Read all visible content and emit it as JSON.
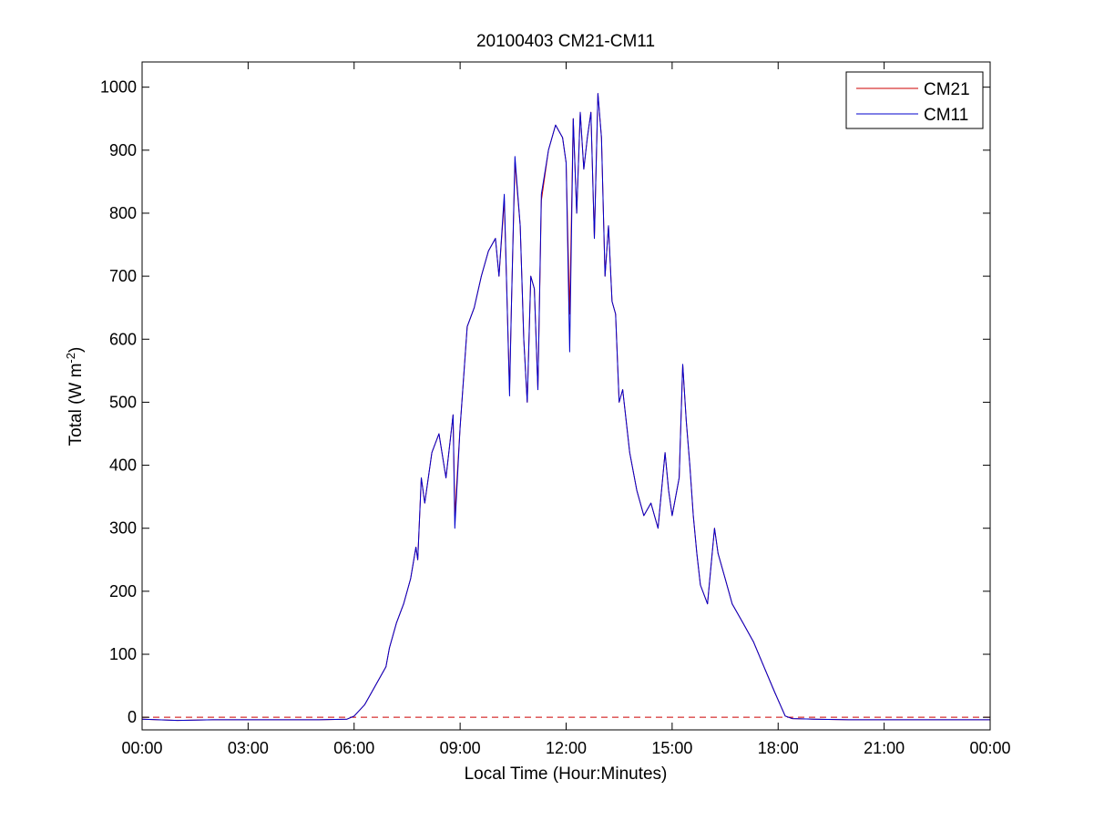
{
  "chart_data": {
    "type": "line",
    "title": "20100403 CM21-CM11",
    "xlabel": "Local Time (Hour:Minutes)",
    "ylabel": "Total (W m",
    "ylabel_superscript": "-2",
    "ylabel_suffix": ")",
    "xlim": [
      0,
      24
    ],
    "ylim": [
      -20,
      1040
    ],
    "x_ticks": [
      0,
      3,
      6,
      9,
      12,
      15,
      18,
      21,
      24
    ],
    "x_tick_labels": [
      "00:00",
      "03:00",
      "06:00",
      "09:00",
      "12:00",
      "15:00",
      "18:00",
      "21:00",
      "00:00"
    ],
    "y_ticks": [
      0,
      100,
      200,
      300,
      400,
      500,
      600,
      700,
      800,
      900,
      1000
    ],
    "y_tick_labels": [
      "0",
      "100",
      "200",
      "300",
      "400",
      "500",
      "600",
      "700",
      "800",
      "900",
      "1000"
    ],
    "grid": false,
    "legend_position": "top-right",
    "zero_line": {
      "y": 0,
      "style": "dashed",
      "color": "#cc0000"
    },
    "x": [
      0,
      1,
      2,
      3,
      4,
      5,
      5.8,
      6.0,
      6.3,
      6.6,
      6.9,
      7.0,
      7.2,
      7.4,
      7.6,
      7.75,
      7.8,
      7.9,
      8.0,
      8.2,
      8.4,
      8.6,
      8.8,
      8.85,
      9.0,
      9.2,
      9.4,
      9.6,
      9.8,
      10.0,
      10.1,
      10.25,
      10.4,
      10.45,
      10.55,
      10.7,
      10.8,
      10.9,
      11.0,
      11.1,
      11.2,
      11.3,
      11.5,
      11.7,
      11.9,
      12.0,
      12.1,
      12.2,
      12.3,
      12.4,
      12.5,
      12.6,
      12.7,
      12.8,
      12.9,
      13.0,
      13.1,
      13.2,
      13.3,
      13.4,
      13.5,
      13.6,
      13.8,
      14.0,
      14.2,
      14.4,
      14.6,
      14.8,
      14.9,
      15.0,
      15.2,
      15.3,
      15.4,
      15.5,
      15.6,
      15.7,
      15.8,
      16.0,
      16.2,
      16.3,
      16.5,
      16.7,
      17.0,
      17.3,
      17.6,
      17.9,
      18.2,
      18.4,
      19,
      20,
      21,
      22,
      23,
      24
    ],
    "series": [
      {
        "name": "CM21",
        "color": "#cc0000",
        "values": [
          -3,
          -5,
          -4,
          -4,
          -4,
          -4,
          -3,
          2,
          20,
          50,
          80,
          110,
          150,
          180,
          220,
          270,
          250,
          380,
          340,
          420,
          450,
          380,
          480,
          320,
          460,
          620,
          650,
          700,
          740,
          760,
          700,
          820,
          520,
          650,
          880,
          780,
          600,
          500,
          700,
          680,
          520,
          820,
          900,
          940,
          920,
          880,
          640,
          950,
          800,
          960,
          870,
          920,
          960,
          760,
          990,
          920,
          700,
          780,
          660,
          640,
          500,
          520,
          420,
          360,
          320,
          340,
          300,
          420,
          360,
          320,
          380,
          560,
          470,
          400,
          320,
          260,
          210,
          180,
          300,
          260,
          220,
          180,
          150,
          120,
          80,
          40,
          2,
          -2,
          -3,
          -4,
          -4,
          -4,
          -4,
          -4
        ]
      },
      {
        "name": "CM11",
        "color": "#0000cc",
        "values": [
          -3,
          -5,
          -4,
          -4,
          -4,
          -4,
          -3,
          2,
          20,
          50,
          80,
          110,
          150,
          180,
          220,
          270,
          250,
          380,
          340,
          420,
          450,
          380,
          480,
          300,
          460,
          620,
          650,
          700,
          740,
          760,
          700,
          830,
          510,
          650,
          890,
          780,
          600,
          500,
          700,
          680,
          520,
          830,
          900,
          940,
          920,
          880,
          580,
          950,
          800,
          960,
          870,
          920,
          960,
          760,
          990,
          920,
          700,
          780,
          660,
          640,
          500,
          520,
          420,
          360,
          320,
          340,
          300,
          420,
          360,
          320,
          380,
          560,
          470,
          400,
          320,
          260,
          210,
          180,
          300,
          260,
          220,
          180,
          150,
          120,
          80,
          40,
          2,
          -2,
          -3,
          -4,
          -4,
          -4,
          -4,
          -4
        ]
      }
    ]
  }
}
